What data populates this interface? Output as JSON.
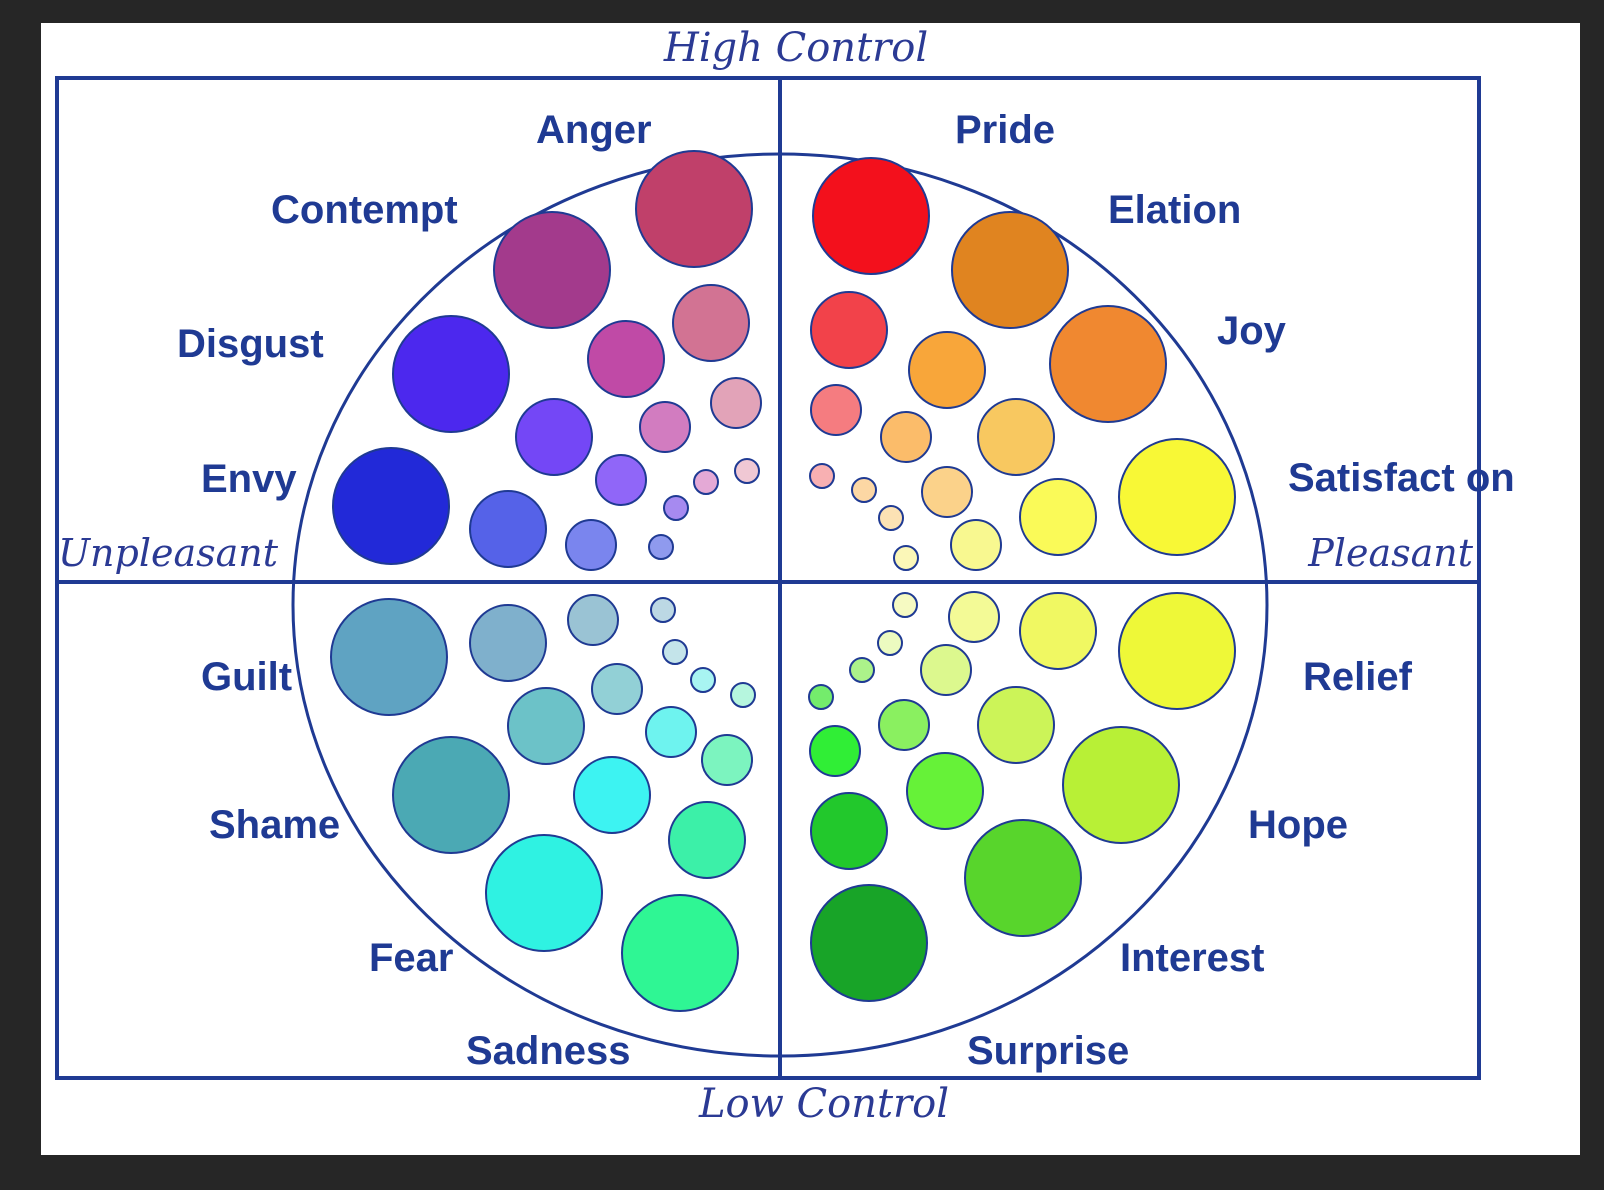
{
  "axes": {
    "top": "High Control",
    "bottom": "Low Control",
    "left": "Unpleasant",
    "right": "Pleasant"
  },
  "emotions": {
    "anger": "Anger",
    "contempt": "Contempt",
    "disgust": "Disgust",
    "envy": "Envy",
    "pride": "Pride",
    "elation": "Elation",
    "joy": "Joy",
    "satisfaction": "Satisfact on",
    "guilt": "Guilt",
    "shame": "Shame",
    "fear": "Fear",
    "sadness": "Sadness",
    "relief": "Relief",
    "hope": "Hope",
    "interest": "Interest",
    "surprise": "Surprise"
  },
  "colors": {
    "frame_line": "#1f3a93",
    "anger": "#c0406a",
    "contempt": "#a33a8c",
    "disgust": "#4c28ee",
    "envy": "#2229d8",
    "pride": "#f3101c",
    "elation": "#e08420",
    "joy": "#f08830",
    "satisfaction": "#f8f836",
    "guilt": "#5fa3c2",
    "shame": "#4ba9b4",
    "fear": "#2ff2e2",
    "sadness": "#2ff694",
    "relief": "#eef838",
    "hope": "#b8f036",
    "interest": "#58d52c",
    "surprise": "#18a428"
  }
}
